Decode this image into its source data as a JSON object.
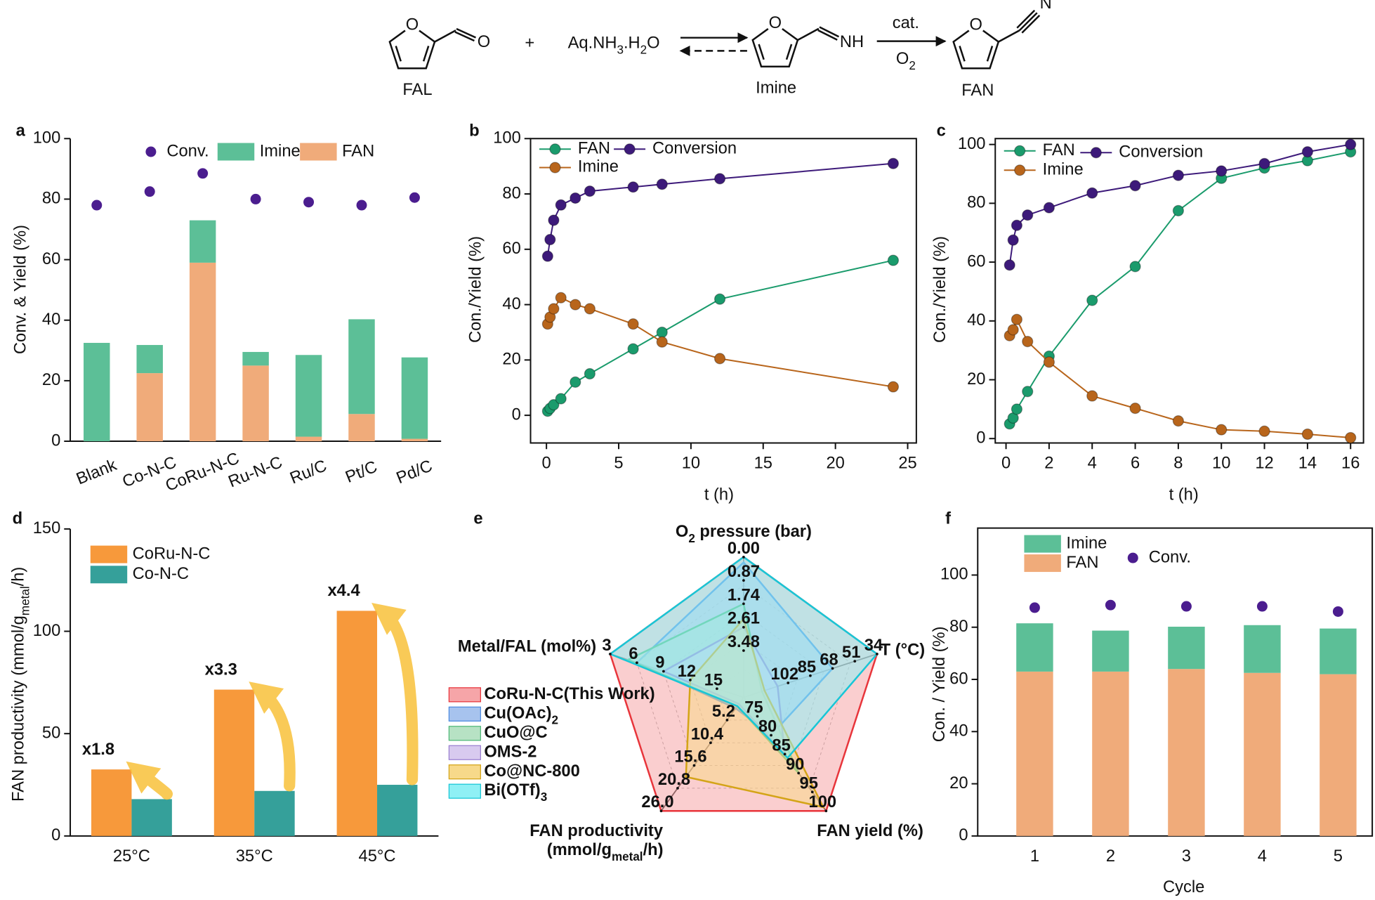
{
  "scheme": {
    "compounds": [
      "FAL",
      "Imine",
      "FAN"
    ],
    "plus": "+",
    "reagent": [
      "Aq.NH",
      "3",
      ".H",
      "2",
      "O"
    ],
    "catalyst": "cat.",
    "oxidant": [
      "O",
      "2"
    ],
    "atoms": [
      "O",
      "O",
      "O",
      "NH",
      "O",
      "N"
    ]
  },
  "chart_data": [
    {
      "type": "bar",
      "stacked": true,
      "panel_label": "a",
      "ylabel": "Conv. & Yield (%)",
      "categories": [
        "Blank",
        "Co-N-C",
        "CoRu-N-C",
        "Ru-N-C",
        "Ru/C",
        "Pt/C",
        "Pd/C"
      ],
      "series": [
        {
          "name": "Conv.",
          "kind": "scatter",
          "color": "#4b1d8f",
          "values": [
            78,
            82.5,
            88.5,
            80,
            79,
            78,
            80.5
          ]
        },
        {
          "name": "Imine",
          "color": "#5cbf97",
          "values": [
            32.5,
            9.3,
            14,
            4.5,
            27,
            31.3,
            26.9
          ]
        },
        {
          "name": "FAN",
          "color": "#f0ab7a",
          "values": [
            0,
            22.5,
            59,
            25,
            1.5,
            9,
            0.8
          ]
        }
      ],
      "ylim": [
        0,
        100
      ],
      "yticks": [
        0,
        20,
        40,
        60,
        80,
        100
      ]
    },
    {
      "type": "line",
      "panel_label": "b",
      "xlabel": "t (h)",
      "ylabel": "Con./Yield (%)",
      "x": [
        0.083,
        0.25,
        0.5,
        1,
        2,
        3,
        6,
        8,
        12,
        24
      ],
      "series": [
        {
          "name": "FAN",
          "color": "#1a9b6c",
          "values": [
            1.5,
            2.5,
            3.8,
            6,
            12,
            15,
            24,
            30,
            42,
            56
          ]
        },
        {
          "name": "Conversion",
          "color": "#3d1a7a",
          "values": [
            57.5,
            63.5,
            70.5,
            76,
            78.5,
            81,
            82.5,
            83.5,
            85.5,
            91
          ]
        },
        {
          "name": "Imine",
          "color": "#b8651b",
          "values": [
            33,
            35.5,
            38.5,
            42.5,
            40,
            38.5,
            33,
            26.5,
            20.5,
            10.3
          ]
        }
      ],
      "xlim": [
        -1.1,
        25.6
      ],
      "ylim": [
        -10,
        100
      ],
      "xticks": [
        0,
        5,
        10,
        15,
        20,
        25
      ],
      "yticks": [
        0,
        20,
        40,
        60,
        80,
        100
      ]
    },
    {
      "type": "line",
      "panel_label": "c",
      "xlabel": "t (h)",
      "ylabel": "Con./Yield (%)",
      "x": [
        0.167,
        0.33,
        0.5,
        1,
        2,
        4,
        6,
        8,
        10,
        12,
        14,
        16
      ],
      "series": [
        {
          "name": "FAN",
          "color": "#1a9b6c",
          "values": [
            5,
            7,
            10,
            16,
            28,
            47,
            58.5,
            77.5,
            88.5,
            92,
            94.5,
            97.5
          ]
        },
        {
          "name": "Conversion",
          "color": "#3d1a7a",
          "values": [
            59,
            67.5,
            72.5,
            76,
            78.5,
            83.5,
            86,
            89.5,
            91,
            93.5,
            97.5,
            100
          ]
        },
        {
          "name": "Imine",
          "color": "#b8651b",
          "values": [
            35,
            37,
            40.5,
            33,
            26,
            14.5,
            10.3,
            6,
            3,
            2.5,
            1.5,
            0.3
          ]
        }
      ],
      "xlim": [
        -0.5,
        16.6
      ],
      "ylim": [
        -1.5,
        102
      ],
      "xticks": [
        0,
        2,
        4,
        6,
        8,
        10,
        12,
        14,
        16
      ],
      "yticks": [
        0,
        20,
        40,
        60,
        80,
        100
      ]
    },
    {
      "type": "bar",
      "panel_label": "d",
      "ylabel": [
        "FAN productivity (mmol/g",
        "metal",
        "/h)"
      ],
      "categories": [
        "25°C",
        "35°C",
        "45°C"
      ],
      "series": [
        {
          "name": "CoRu-N-C",
          "color": "#f7993b",
          "values": [
            32.5,
            71.5,
            110
          ]
        },
        {
          "name": "Co-N-C",
          "color": "#35a09a",
          "values": [
            18,
            22,
            25
          ]
        }
      ],
      "annotations": [
        "x1.8",
        "x3.3",
        "x4.4"
      ],
      "ylim": [
        0,
        150
      ],
      "yticks": [
        0,
        50,
        100,
        150
      ]
    },
    {
      "type": "radar",
      "panel_label": "e",
      "axes": [
        {
          "name": [
            "O",
            "2",
            " pressure (bar)"
          ],
          "lim": [
            5.22,
            0
          ],
          "ticks": [
            {
              "value": 0,
              "label": "0.00"
            },
            0.87,
            1.74,
            2.61,
            3.48
          ]
        },
        {
          "name": "T (°C)",
          "lim": [
            136,
            34
          ],
          "ticks": [
            34,
            51,
            68,
            85,
            102
          ]
        },
        {
          "name": "FAN yield (%)",
          "lim": [
            70,
            100
          ],
          "ticks": [
            100,
            95,
            90,
            85,
            80,
            75
          ]
        },
        {
          "name": "FAN productivity",
          "unit": [
            "(mmol/g",
            "metal",
            "/h)"
          ],
          "lim": [
            0,
            26
          ],
          "ticks": [
            {
              "value": 26,
              "label": "26.0"
            },
            20.8,
            15.6,
            10.4,
            5.2
          ]
        },
        {
          "name": "Metal/FAL (mol%)",
          "lim": [
            18,
            3
          ],
          "ticks": [
            3,
            6,
            9,
            12,
            15
          ]
        }
      ],
      "series": [
        {
          "name": "CoRu-N-C(This Work)",
          "color": "#e8353b",
          "fill_color": "#f6a5a8",
          "values": [
            0,
            34,
            100,
            26,
            3
          ]
        },
        {
          "name": [
            "Cu(OAc)",
            "2"
          ],
          "color": "#4d8be0",
          "fill_color": "#a7c3ee",
          "values": [
            0.2,
            68,
            80,
            2.5,
            6
          ]
        },
        {
          "name": "CuO@C",
          "color": "#4fb877",
          "fill_color": "#b7e2c4",
          "values": [
            1.74,
            122,
            90,
            2,
            5
          ]
        },
        {
          "name": "OMS-2",
          "color": "#9a7fd0",
          "fill_color": "#d8caef",
          "values": [
            2.61,
            110,
            85,
            1.5,
            9
          ]
        },
        {
          "name": "Co@NC-800",
          "color": "#d4a417",
          "fill_color": "#f7d98a",
          "values": [
            2.3,
            120,
            99,
            18.2,
            12
          ]
        },
        {
          "name": [
            "Bi(OTf)",
            "3"
          ],
          "color": "#18c6d6",
          "fill_color": "#8ff0f5",
          "values": [
            0,
            34,
            86,
            2,
            3
          ]
        }
      ]
    },
    {
      "type": "bar",
      "stacked": true,
      "panel_label": "f",
      "xlabel": "Cycle",
      "ylabel": "Con. / Yield (%)",
      "categories": [
        "1",
        "2",
        "3",
        "4",
        "5"
      ],
      "series": [
        {
          "name": "Imine",
          "color": "#5cbf97",
          "values": [
            18.5,
            15.7,
            16.2,
            18.3,
            17.5
          ]
        },
        {
          "name": "FAN",
          "color": "#f0ab7a",
          "values": [
            63,
            63,
            64,
            62.5,
            62
          ]
        },
        {
          "name": "Conv.",
          "kind": "scatter",
          "color": "#4b1d8f",
          "values": [
            87.5,
            88.5,
            88,
            88,
            86
          ]
        }
      ],
      "ylim": [
        0,
        118
      ],
      "yticks": [
        0,
        20,
        40,
        60,
        80,
        100
      ]
    }
  ]
}
